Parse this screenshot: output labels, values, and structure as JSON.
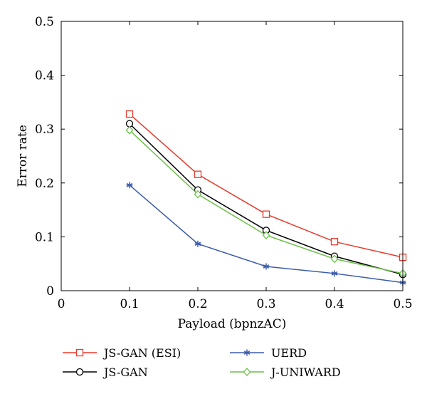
{
  "chart_data": {
    "type": "line",
    "title": "",
    "xlabel": "Payload (bpnzAC)",
    "ylabel": "Error rate",
    "xlim": [
      0,
      0.5
    ],
    "ylim": [
      0,
      0.5
    ],
    "xticks": [
      "0",
      "0.1",
      "0.2",
      "0.3",
      "0.4",
      "0.5"
    ],
    "yticks": [
      "0",
      "0.1",
      "0.2",
      "0.3",
      "0.4",
      "0.5"
    ],
    "grid": false,
    "legend_position": "bottom",
    "x": [
      0.1,
      0.2,
      0.3,
      0.4,
      0.5
    ],
    "series": [
      {
        "name": "JS-GAN (ESI)",
        "color": "#e8392b",
        "marker": "square",
        "values": [
          0.328,
          0.216,
          0.142,
          0.091,
          0.062
        ]
      },
      {
        "name": "JS-GAN",
        "color": "#000000",
        "marker": "circle",
        "values": [
          0.31,
          0.187,
          0.112,
          0.064,
          0.03
        ]
      },
      {
        "name": "UERD",
        "color": "#3b5bab",
        "marker": "asterisk",
        "values": [
          0.196,
          0.087,
          0.045,
          0.032,
          0.015
        ]
      },
      {
        "name": "J-UNIWARD",
        "color": "#6cc04a",
        "marker": "diamond",
        "values": [
          0.298,
          0.179,
          0.103,
          0.059,
          0.032
        ]
      }
    ]
  }
}
